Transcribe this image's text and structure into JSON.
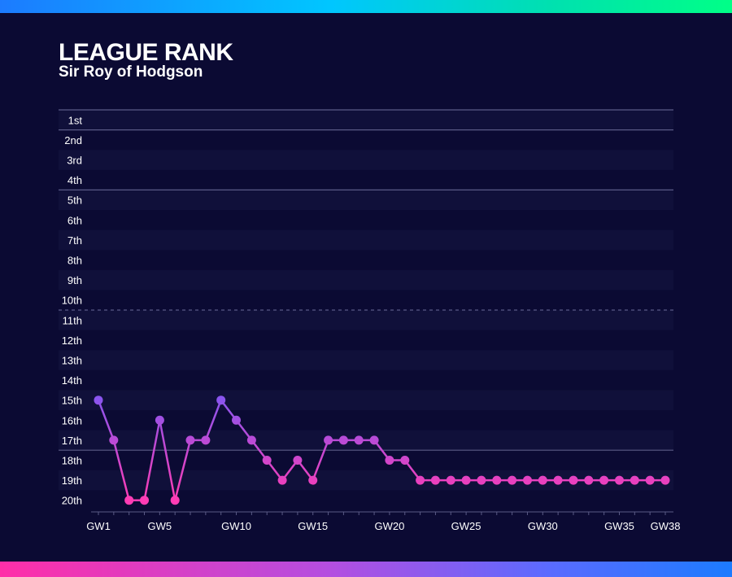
{
  "header": {
    "title": "LEAGUE RANK",
    "subtitle": "Sir Roy of Hodgson"
  },
  "colors": {
    "background": "#0b0a33",
    "band_alt": "#10103a",
    "line_start": "#8a55ee",
    "line_end": "#ff3cb4",
    "axis_line": "#5a5a86"
  },
  "chart_data": {
    "type": "line",
    "title": "LEAGUE RANK",
    "subtitle": "Sir Roy of Hodgson",
    "y_categories": [
      "1st",
      "2nd",
      "3rd",
      "4th",
      "5th",
      "6th",
      "7th",
      "8th",
      "9th",
      "10th",
      "11th",
      "12th",
      "13th",
      "14th",
      "15th",
      "16th",
      "17th",
      "18th",
      "19th",
      "20th"
    ],
    "y_inverted": true,
    "ylim": [
      1,
      20
    ],
    "xlim": [
      1,
      38
    ],
    "x": [
      1,
      2,
      3,
      4,
      5,
      6,
      7,
      8,
      9,
      10,
      11,
      12,
      13,
      14,
      15,
      16,
      17,
      18,
      19,
      20,
      21,
      22,
      23,
      24,
      25,
      26,
      27,
      28,
      29,
      30,
      31,
      32,
      33,
      34,
      35,
      36,
      37,
      38
    ],
    "x_tick_labels": [
      {
        "x": 1,
        "label": "GW1"
      },
      {
        "x": 5,
        "label": "GW5"
      },
      {
        "x": 10,
        "label": "GW10"
      },
      {
        "x": 15,
        "label": "GW15"
      },
      {
        "x": 20,
        "label": "GW20"
      },
      {
        "x": 25,
        "label": "GW25"
      },
      {
        "x": 30,
        "label": "GW30"
      },
      {
        "x": 35,
        "label": "GW35"
      },
      {
        "x": 38,
        "label": "GW38"
      }
    ],
    "series": [
      {
        "values": [
          15,
          17,
          20,
          20,
          16,
          20,
          17,
          17,
          15,
          16,
          17,
          18,
          19,
          18,
          19,
          17,
          17,
          17,
          17,
          18,
          18,
          19,
          19,
          19,
          19,
          19,
          19,
          19,
          19,
          19,
          19,
          19,
          19,
          19,
          19,
          19,
          19,
          19
        ]
      }
    ],
    "reference_lines": [
      {
        "between": [
          1,
          2
        ],
        "style": "solid"
      },
      {
        "between": [
          4,
          5
        ],
        "style": "solid"
      },
      {
        "between": [
          10,
          11
        ],
        "style": "dashed"
      },
      {
        "between": [
          17,
          18
        ],
        "style": "solid"
      }
    ],
    "grid": false,
    "legend": "none"
  }
}
